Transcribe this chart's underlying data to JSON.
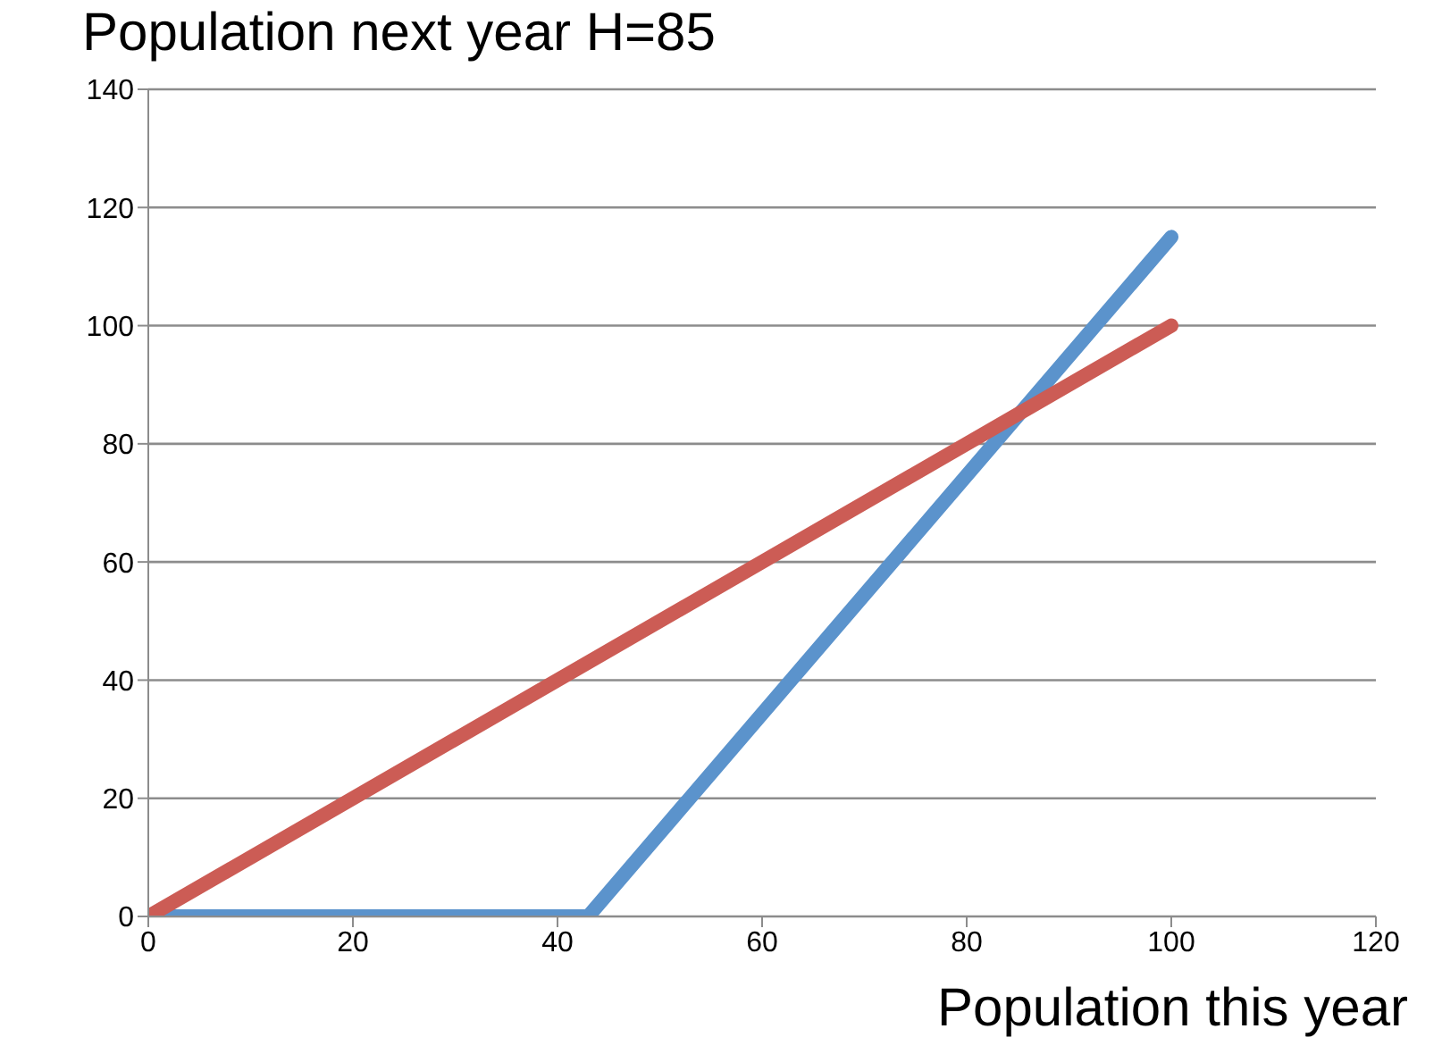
{
  "chart_data": {
    "type": "line",
    "title": "Population next year H=85",
    "xlabel": "Population this year",
    "series": [
      {
        "color": "#5b93cc",
        "x": [
          0,
          43,
          100
        ],
        "values": [
          0,
          0,
          115
        ]
      },
      {
        "color": "#cc5c55",
        "x": [
          0,
          100
        ],
        "values": [
          0,
          100
        ]
      }
    ],
    "xlim": [
      0,
      120
    ],
    "xticks": [
      0,
      20,
      40,
      60,
      80,
      100,
      120
    ],
    "ylim": [
      0,
      140
    ],
    "yticks": [
      0,
      20,
      40,
      60,
      80,
      100,
      120,
      140
    ],
    "grid": "y",
    "marker": "none",
    "line_style": "solid"
  }
}
